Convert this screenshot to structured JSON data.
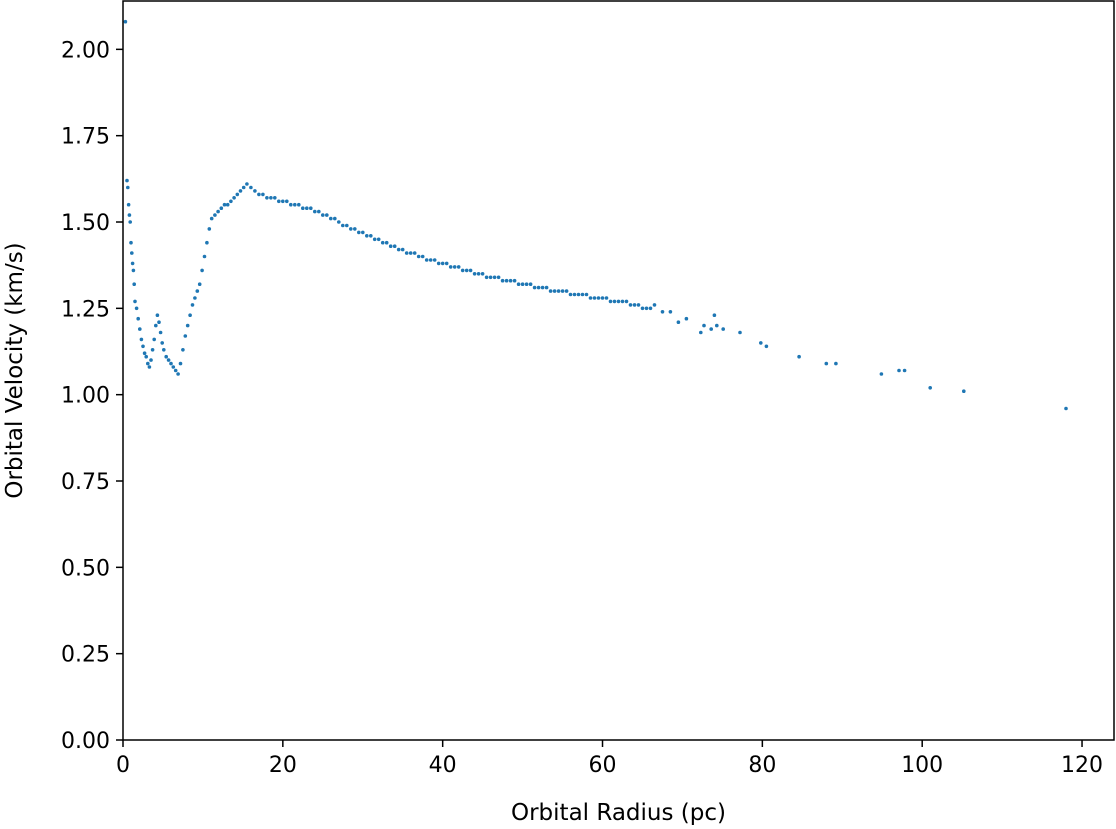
{
  "chart_data": {
    "type": "scatter",
    "xlabel": "Orbital Radius (pc)",
    "ylabel": "Orbital Velocity (km/s)",
    "xlim": [
      0,
      124
    ],
    "ylim": [
      0,
      2.14
    ],
    "xticks": [
      0,
      20,
      40,
      60,
      80,
      100,
      120
    ],
    "xtick_labels": [
      "0",
      "20",
      "40",
      "60",
      "80",
      "100",
      "120"
    ],
    "yticks": [
      0,
      0.25,
      0.5,
      0.75,
      1.0,
      1.25,
      1.5,
      1.75,
      2.0
    ],
    "ytick_labels": [
      "0.00",
      "0.25",
      "0.50",
      "0.75",
      "1.00",
      "1.25",
      "1.50",
      "1.75",
      "2.00"
    ],
    "grid": false,
    "color": "#1f77b4",
    "series": [
      {
        "points": [
          [
            0.3,
            2.08
          ],
          [
            0.5,
            1.62
          ],
          [
            0.6,
            1.6
          ],
          [
            0.7,
            1.55
          ],
          [
            0.8,
            1.52
          ],
          [
            0.9,
            1.5
          ],
          [
            1.0,
            1.44
          ],
          [
            1.1,
            1.41
          ],
          [
            1.2,
            1.38
          ],
          [
            1.3,
            1.36
          ],
          [
            1.4,
            1.32
          ],
          [
            1.5,
            1.27
          ],
          [
            1.7,
            1.25
          ],
          [
            1.9,
            1.22
          ],
          [
            2.1,
            1.19
          ],
          [
            2.3,
            1.16
          ],
          [
            2.5,
            1.14
          ],
          [
            2.7,
            1.12
          ],
          [
            2.9,
            1.11
          ],
          [
            3.1,
            1.09
          ],
          [
            3.3,
            1.08
          ],
          [
            3.5,
            1.1
          ],
          [
            3.7,
            1.13
          ],
          [
            3.9,
            1.16
          ],
          [
            4.1,
            1.2
          ],
          [
            4.3,
            1.23
          ],
          [
            4.5,
            1.21
          ],
          [
            4.7,
            1.18
          ],
          [
            4.9,
            1.15
          ],
          [
            5.1,
            1.13
          ],
          [
            5.4,
            1.11
          ],
          [
            5.7,
            1.1
          ],
          [
            6.0,
            1.09
          ],
          [
            6.3,
            1.08
          ],
          [
            6.6,
            1.07
          ],
          [
            6.9,
            1.06
          ],
          [
            7.2,
            1.09
          ],
          [
            7.5,
            1.13
          ],
          [
            7.8,
            1.17
          ],
          [
            8.1,
            1.2
          ],
          [
            8.4,
            1.23
          ],
          [
            8.7,
            1.26
          ],
          [
            9.0,
            1.28
          ],
          [
            9.3,
            1.3
          ],
          [
            9.6,
            1.32
          ],
          [
            9.9,
            1.36
          ],
          [
            10.2,
            1.4
          ],
          [
            10.5,
            1.44
          ],
          [
            10.8,
            1.48
          ],
          [
            11.1,
            1.51
          ],
          [
            11.5,
            1.52
          ],
          [
            11.9,
            1.53
          ],
          [
            12.3,
            1.54
          ],
          [
            12.7,
            1.55
          ],
          [
            13.1,
            1.55
          ],
          [
            13.5,
            1.56
          ],
          [
            13.9,
            1.57
          ],
          [
            14.3,
            1.58
          ],
          [
            14.7,
            1.59
          ],
          [
            15.1,
            1.6
          ],
          [
            15.5,
            1.61
          ],
          [
            16.0,
            1.6
          ],
          [
            16.5,
            1.59
          ],
          [
            17.0,
            1.58
          ],
          [
            17.5,
            1.58
          ],
          [
            18.0,
            1.57
          ],
          [
            18.5,
            1.57
          ],
          [
            19.0,
            1.57
          ],
          [
            19.5,
            1.56
          ],
          [
            20.0,
            1.56
          ],
          [
            20.5,
            1.56
          ],
          [
            21.0,
            1.55
          ],
          [
            21.5,
            1.55
          ],
          [
            22.0,
            1.55
          ],
          [
            22.5,
            1.54
          ],
          [
            23.0,
            1.54
          ],
          [
            23.5,
            1.54
          ],
          [
            24.0,
            1.53
          ],
          [
            24.5,
            1.53
          ],
          [
            25.0,
            1.52
          ],
          [
            25.5,
            1.52
          ],
          [
            26.0,
            1.51
          ],
          [
            26.5,
            1.51
          ],
          [
            27.0,
            1.5
          ],
          [
            27.5,
            1.49
          ],
          [
            28.0,
            1.49
          ],
          [
            28.5,
            1.48
          ],
          [
            29.0,
            1.48
          ],
          [
            29.5,
            1.47
          ],
          [
            30.0,
            1.47
          ],
          [
            30.5,
            1.46
          ],
          [
            31.0,
            1.46
          ],
          [
            31.5,
            1.45
          ],
          [
            32.0,
            1.45
          ],
          [
            32.5,
            1.44
          ],
          [
            33.0,
            1.44
          ],
          [
            33.5,
            1.43
          ],
          [
            34.0,
            1.43
          ],
          [
            34.5,
            1.42
          ],
          [
            35.0,
            1.42
          ],
          [
            35.5,
            1.41
          ],
          [
            36.0,
            1.41
          ],
          [
            36.5,
            1.41
          ],
          [
            37.0,
            1.4
          ],
          [
            37.5,
            1.4
          ],
          [
            38.0,
            1.39
          ],
          [
            38.5,
            1.39
          ],
          [
            39.0,
            1.39
          ],
          [
            39.5,
            1.38
          ],
          [
            40.0,
            1.38
          ],
          [
            40.5,
            1.38
          ],
          [
            41.0,
            1.37
          ],
          [
            41.5,
            1.37
          ],
          [
            42.0,
            1.37
          ],
          [
            42.5,
            1.36
          ],
          [
            43.0,
            1.36
          ],
          [
            43.5,
            1.36
          ],
          [
            44.0,
            1.35
          ],
          [
            44.5,
            1.35
          ],
          [
            45.0,
            1.35
          ],
          [
            45.5,
            1.34
          ],
          [
            46.0,
            1.34
          ],
          [
            46.5,
            1.34
          ],
          [
            47.0,
            1.34
          ],
          [
            47.5,
            1.33
          ],
          [
            48.0,
            1.33
          ],
          [
            48.5,
            1.33
          ],
          [
            49.0,
            1.33
          ],
          [
            49.5,
            1.32
          ],
          [
            50.0,
            1.32
          ],
          [
            50.5,
            1.32
          ],
          [
            51.0,
            1.32
          ],
          [
            51.5,
            1.31
          ],
          [
            52.0,
            1.31
          ],
          [
            52.5,
            1.31
          ],
          [
            53.0,
            1.31
          ],
          [
            53.5,
            1.3
          ],
          [
            54.0,
            1.3
          ],
          [
            54.5,
            1.3
          ],
          [
            55.0,
            1.3
          ],
          [
            55.5,
            1.3
          ],
          [
            56.0,
            1.29
          ],
          [
            56.5,
            1.29
          ],
          [
            57.0,
            1.29
          ],
          [
            57.5,
            1.29
          ],
          [
            58.0,
            1.29
          ],
          [
            58.5,
            1.28
          ],
          [
            59.0,
            1.28
          ],
          [
            59.5,
            1.28
          ],
          [
            60.0,
            1.28
          ],
          [
            60.5,
            1.28
          ],
          [
            61.0,
            1.27
          ],
          [
            61.5,
            1.27
          ],
          [
            62.0,
            1.27
          ],
          [
            62.5,
            1.27
          ],
          [
            63.0,
            1.27
          ],
          [
            63.5,
            1.26
          ],
          [
            64.0,
            1.26
          ],
          [
            64.5,
            1.26
          ],
          [
            65.0,
            1.25
          ],
          [
            65.5,
            1.25
          ],
          [
            66.0,
            1.25
          ],
          [
            66.5,
            1.26
          ],
          [
            67.5,
            1.24
          ],
          [
            68.5,
            1.24
          ],
          [
            69.5,
            1.21
          ],
          [
            70.5,
            1.22
          ],
          [
            72.3,
            1.18
          ],
          [
            72.7,
            1.2
          ],
          [
            73.6,
            1.19
          ],
          [
            74.0,
            1.23
          ],
          [
            74.3,
            1.2
          ],
          [
            75.1,
            1.19
          ],
          [
            77.2,
            1.18
          ],
          [
            79.8,
            1.15
          ],
          [
            80.5,
            1.14
          ],
          [
            84.6,
            1.11
          ],
          [
            88.0,
            1.09
          ],
          [
            89.2,
            1.09
          ],
          [
            94.9,
            1.06
          ],
          [
            97.1,
            1.07
          ],
          [
            97.8,
            1.07
          ],
          [
            101.0,
            1.02
          ],
          [
            105.2,
            1.01
          ],
          [
            118.0,
            0.96
          ]
        ]
      }
    ]
  }
}
